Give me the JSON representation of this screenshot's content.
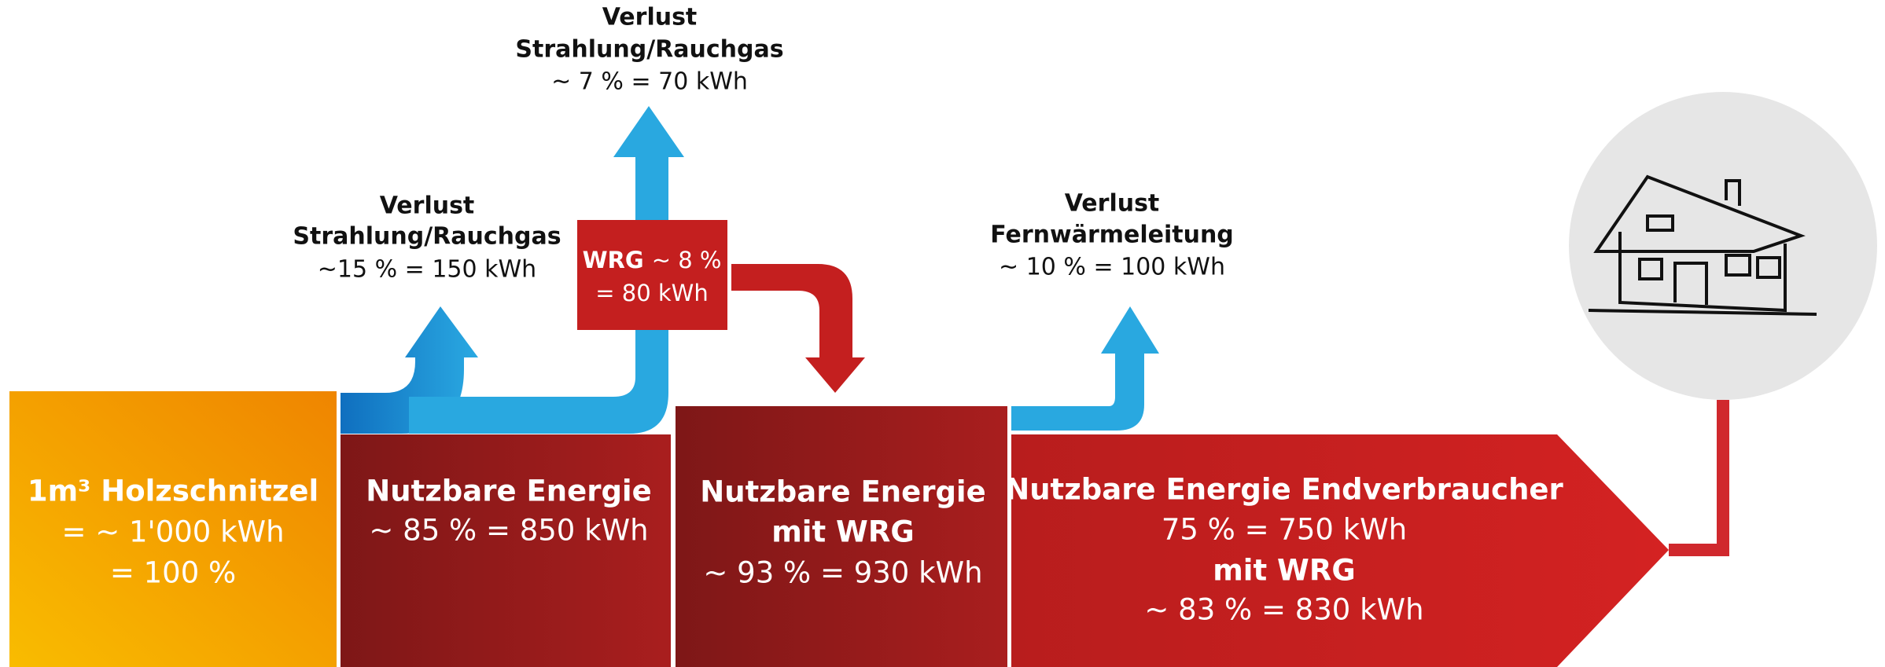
{
  "source": {
    "title": "1m³ Holzschnitzel",
    "lines": [
      "= ~ 1'000 kWh",
      "= 100 %"
    ]
  },
  "boxes": [
    {
      "lines": [
        "Nutzbare Energie",
        "~ 85 % = 850 kWh"
      ]
    },
    {
      "lines": [
        "Nutzbare Energie",
        "mit WRG",
        "~ 93 % = 930 kWh"
      ]
    },
    {
      "lines": [
        "Nutzbare Energie Endverbraucher",
        "75 % = 750 kWh",
        "mit WRG",
        "~ 83 % = 830 kWh"
      ]
    }
  ],
  "losses": [
    {
      "lines": [
        "Verlust",
        "Strahlung/Rauchgas",
        "~15 % = 150 kWh"
      ]
    },
    {
      "lines": [
        "Verlust",
        "Strahlung/Rauchgas",
        "~ 7 % = 70 kWh"
      ]
    },
    {
      "lines": [
        "Verlust",
        "Fernwärmeleitung",
        "~ 10 % = 100 kWh"
      ]
    }
  ],
  "wrg": {
    "label": "WRG",
    "share": "~ 8 %",
    "energy": "= 80 kWh"
  }
}
